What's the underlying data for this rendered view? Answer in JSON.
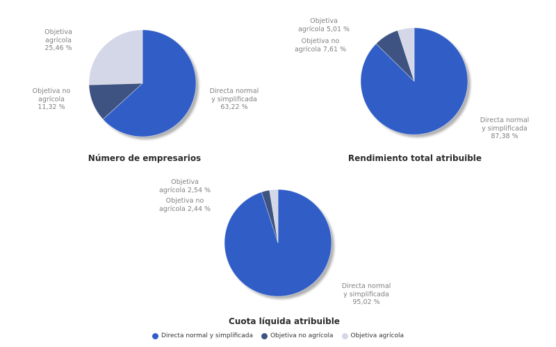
{
  "page": {
    "background": "#ffffff",
    "label_color": "#808080",
    "title_color": "#2b2b2b",
    "shadow_color": "#9e9e9e"
  },
  "chart_data": [
    {
      "type": "pie",
      "title": "Número de empresarios",
      "slices": [
        {
          "name": "Directa normal y simplificada",
          "value": 63.22,
          "pct_label": "63,22 %",
          "color": "#315DC7",
          "callout": "Directa normal\ny simplificada\n63,22 %"
        },
        {
          "name": "Objetiva no agrícola",
          "value": 11.32,
          "pct_label": "11,32 %",
          "color": "#3E5381",
          "callout": "Objetiva no\nagrícola\n11,32 %"
        },
        {
          "name": "Objetiva agrícola",
          "value": 25.46,
          "pct_label": "25,46 %",
          "color": "#D3D7E7",
          "callout": "Objetiva\nagrícola\n25,46 %"
        }
      ]
    },
    {
      "type": "pie",
      "title": "Rendimiento total atribuible",
      "slices": [
        {
          "name": "Directa normal y simplificada",
          "value": 87.38,
          "pct_label": "87,38 %",
          "color": "#315DC7",
          "callout": "Directa normal\ny simplificada\n87,38 %"
        },
        {
          "name": "Objetiva no agrícola",
          "value": 7.61,
          "pct_label": "7,61 %",
          "color": "#3E5381",
          "callout": "Objetiva no\nagrícola 7,61 %"
        },
        {
          "name": "Objetiva agrícola",
          "value": 5.01,
          "pct_label": "5,01 %",
          "color": "#D3D7E7",
          "callout": "Objetiva\nagrícola 5,01 %"
        }
      ]
    },
    {
      "type": "pie",
      "title": "Cuota líquida atribuible",
      "slices": [
        {
          "name": "Directa normal y simplificada",
          "value": 95.02,
          "pct_label": "95,02 %",
          "color": "#315DC7",
          "callout": "Directa normal\ny simplificada\n95,02 %"
        },
        {
          "name": "Objetiva no agrícola",
          "value": 2.44,
          "pct_label": "2,44 %",
          "color": "#3E5381",
          "callout": "Objetiva no\nagrícola 2,44 %"
        },
        {
          "name": "Objetiva agrícola",
          "value": 2.54,
          "pct_label": "2,54 %",
          "color": "#D3D7E7",
          "callout": "Objetiva\nagrícola 2,54 %"
        }
      ]
    }
  ],
  "legend": {
    "items": [
      {
        "label": "Directa normal y simplificada",
        "color": "#315DC7"
      },
      {
        "label": "Objetiva no agrícola",
        "color": "#3E5381"
      },
      {
        "label": "Objetiva agrícola",
        "color": "#D3D7E7"
      }
    ]
  }
}
